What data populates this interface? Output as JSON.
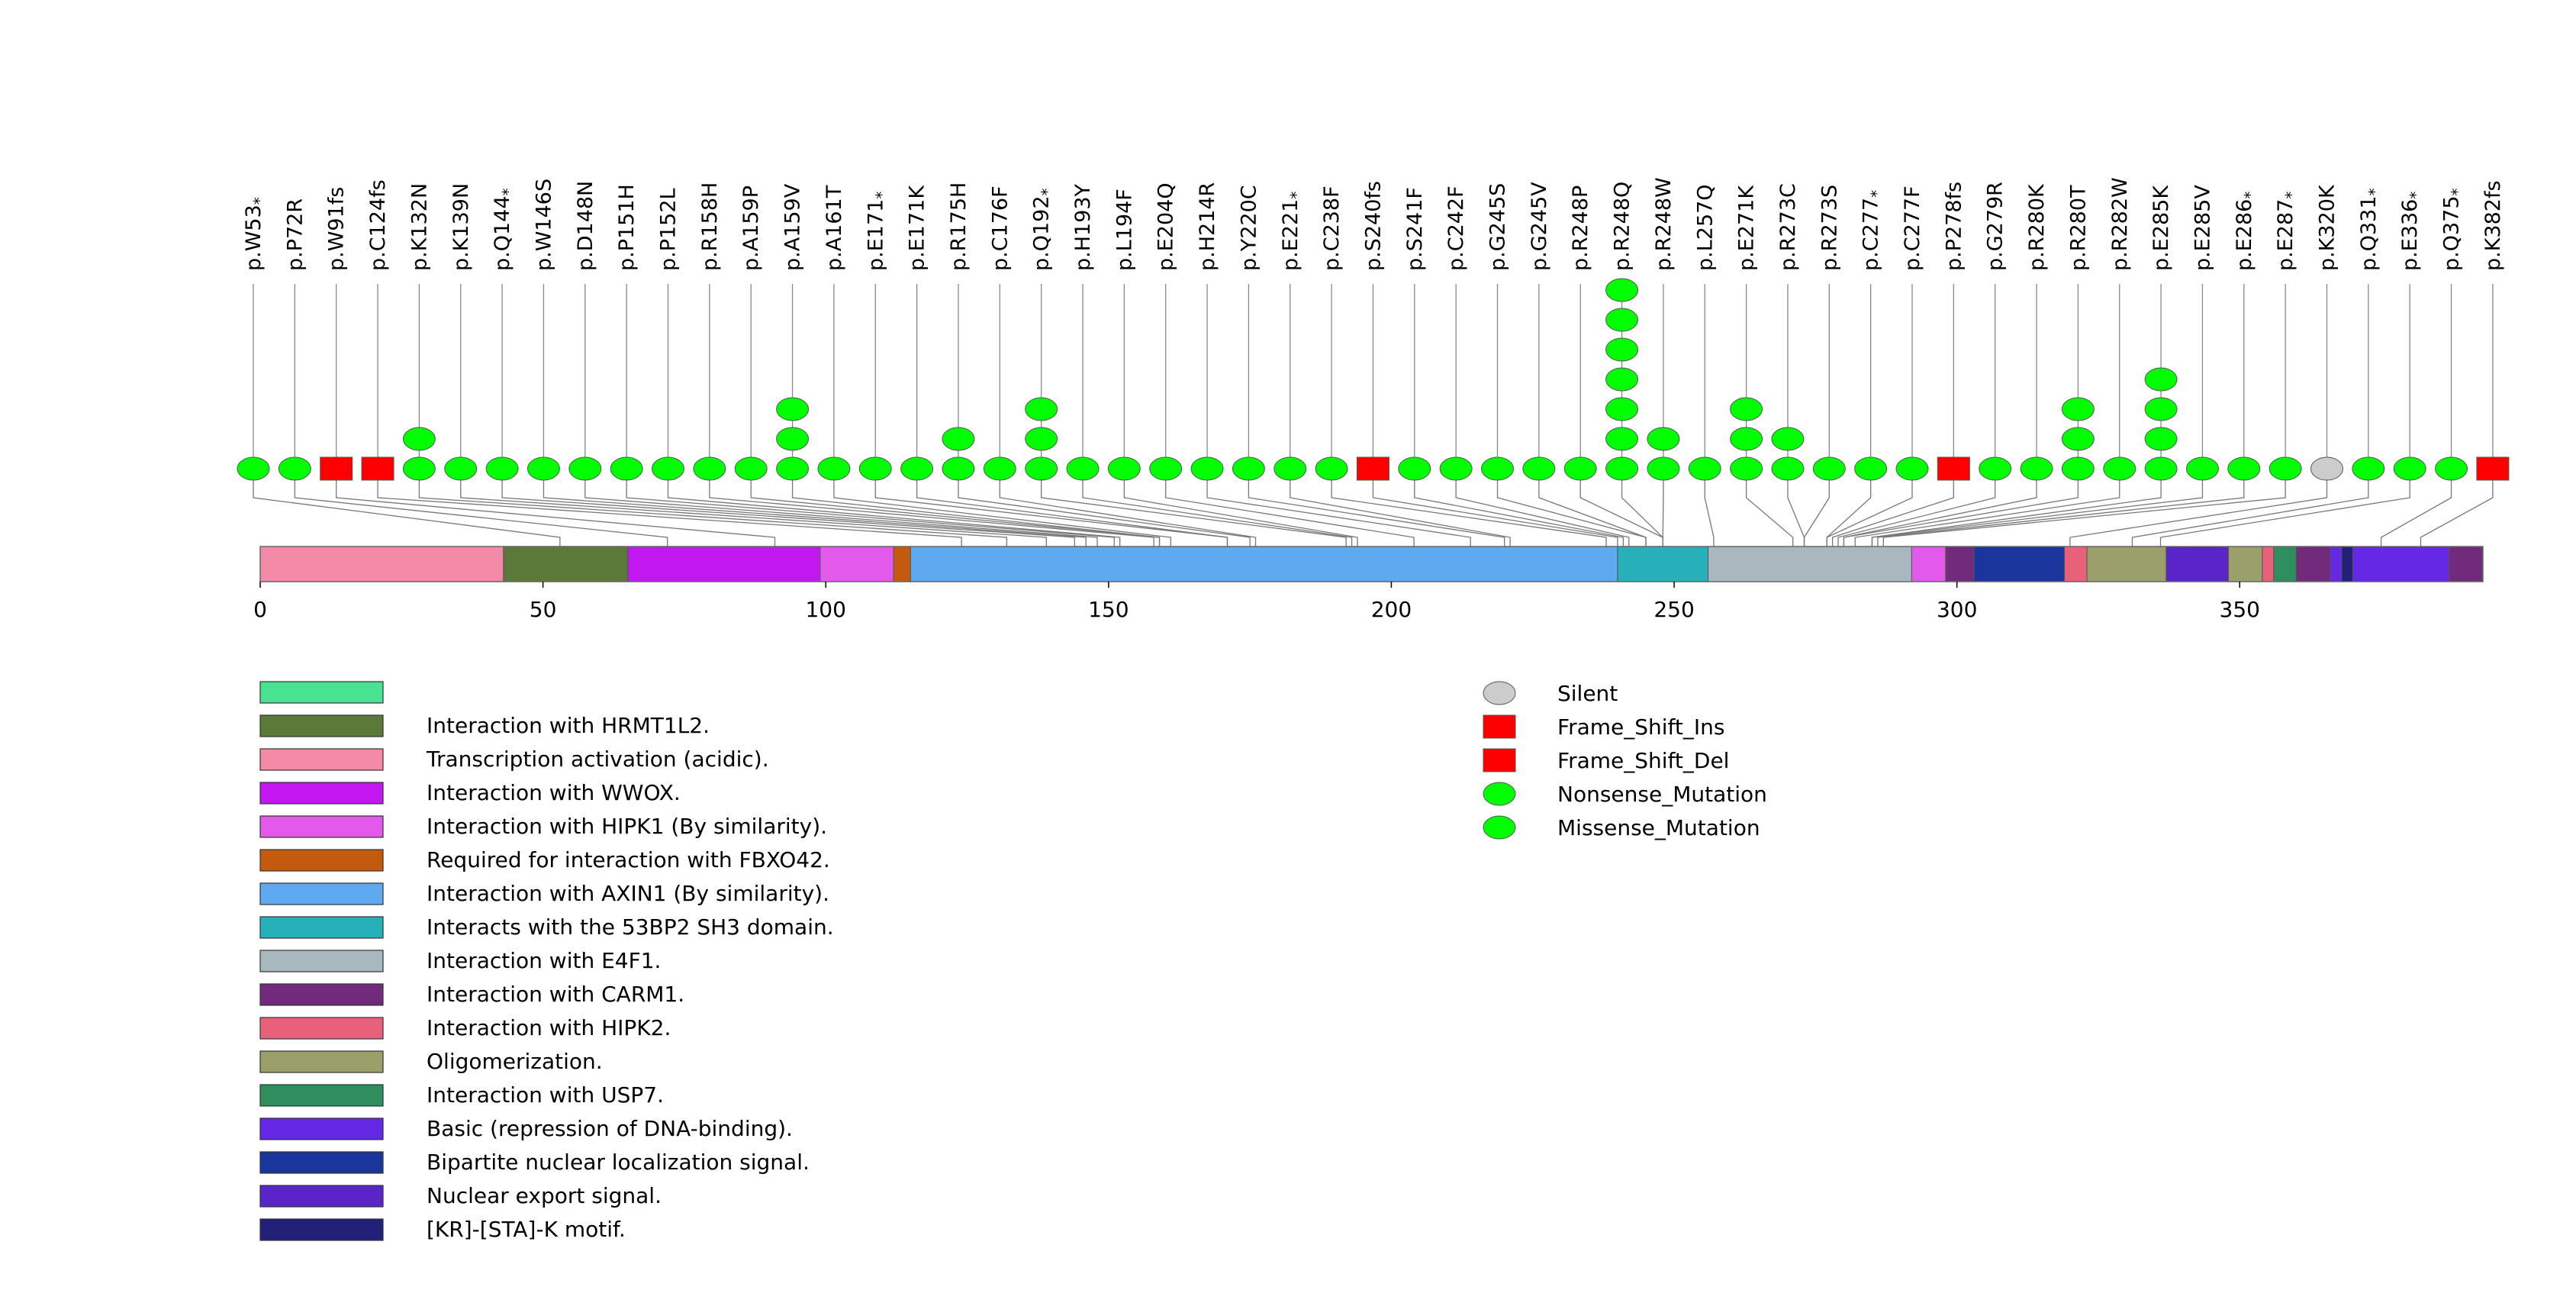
{
  "chart_data": {
    "type": "lollipop",
    "protein_length": 393,
    "axis": {
      "ticks": [
        0,
        50,
        100,
        150,
        200,
        250,
        300,
        350
      ]
    },
    "domains": [
      {
        "label": "",
        "color": "#48e290",
        "start": 0,
        "end": 0
      },
      {
        "label": "Interaction with HRMT1L2.",
        "color": "#5b7a3a",
        "start": 43,
        "end": 65
      },
      {
        "label": "Transcription activation (acidic).",
        "color": "#f48aa8",
        "start": 0,
        "end": 43
      },
      {
        "label": "Interaction with WWOX.",
        "color": "#c018ee",
        "start": 65,
        "end": 99
      },
      {
        "label": "Interaction with HIPK1 (By similarity).",
        "color": "#e35aea",
        "start": 99,
        "end": 112
      },
      {
        "label": "Required for interaction with FBXO42.",
        "color": "#c35a0e",
        "start": 112,
        "end": 115
      },
      {
        "label": "Interaction with AXIN1 (By similarity).",
        "color": "#5ea9ef",
        "start": 115,
        "end": 240
      },
      {
        "label": "Interacts with the 53BP2 SH3 domain.",
        "color": "#27b0ba",
        "start": 240,
        "end": 256
      },
      {
        "label": "Interaction with E4F1.",
        "color": "#a9b8bf",
        "start": 256,
        "end": 292
      },
      {
        "label": "Interaction with CARM1.",
        "color": "#722b7c",
        "start": 298,
        "end": 303
      },
      {
        "label": "Interaction with HIPK2.",
        "color": "#e8607a",
        "start": 319,
        "end": 323
      },
      {
        "label": "Oligomerization.",
        "color": "#9b9f6a",
        "start": 323,
        "end": 337
      },
      {
        "label": "Interaction with USP7.",
        "color": "#2f8e5e",
        "start": 356,
        "end": 360
      },
      {
        "label": "Basic (repression of DNA-binding).",
        "color": "#6528e4",
        "start": 368,
        "end": 387
      },
      {
        "label": "Bipartite nuclear localization signal.",
        "color": "#1a359b",
        "start": 303,
        "end": 319
      },
      {
        "label": "Nuclear export signal.",
        "color": "#5a25c8",
        "start": 337,
        "end": 348
      },
      {
        "label": "[KR]-[STA]-K motif.",
        "color": "#222078",
        "start": 368,
        "end": 370
      }
    ],
    "extra_segments": [
      {
        "color": "#e35aea",
        "start": 292,
        "end": 298
      },
      {
        "color": "#9b9f6a",
        "start": 348,
        "end": 354
      },
      {
        "color": "#e8607a",
        "start": 354,
        "end": 356
      },
      {
        "color": "#722b7c",
        "start": 360,
        "end": 366
      },
      {
        "color": "#6528e4",
        "start": 366,
        "end": 368
      },
      {
        "color": "#722b7c",
        "start": 387,
        "end": 393
      }
    ],
    "mutation_types": [
      {
        "label": "Silent",
        "color": "#cccccc",
        "shape": "ellipse"
      },
      {
        "label": "Frame_Shift_Ins",
        "color": "#ff0000",
        "shape": "rect"
      },
      {
        "label": "Frame_Shift_Del",
        "color": "#ff0000",
        "shape": "rect"
      },
      {
        "label": "Nonsense_Mutation",
        "color": "#00ff00",
        "shape": "ellipse"
      },
      {
        "label": "Missense_Mutation",
        "color": "#00ff00",
        "shape": "ellipse"
      }
    ],
    "mutations": [
      {
        "label": "p.W53",
        "star": true,
        "pos": 53,
        "count": 1,
        "type": "Nonsense_Mutation"
      },
      {
        "label": "p.P72R",
        "star": false,
        "pos": 72,
        "count": 1,
        "type": "Missense_Mutation"
      },
      {
        "label": "p.W91fs",
        "star": false,
        "pos": 91,
        "count": 1,
        "type": "Frame_Shift_Del"
      },
      {
        "label": "p.C124fs",
        "star": false,
        "pos": 124,
        "count": 1,
        "type": "Frame_Shift_Del"
      },
      {
        "label": "p.K132N",
        "star": false,
        "pos": 132,
        "count": 2,
        "type": "Missense_Mutation"
      },
      {
        "label": "p.K139N",
        "star": false,
        "pos": 139,
        "count": 1,
        "type": "Missense_Mutation"
      },
      {
        "label": "p.Q144",
        "star": true,
        "pos": 144,
        "count": 1,
        "type": "Nonsense_Mutation"
      },
      {
        "label": "p.W146S",
        "star": false,
        "pos": 146,
        "count": 1,
        "type": "Missense_Mutation"
      },
      {
        "label": "p.D148N",
        "star": false,
        "pos": 148,
        "count": 1,
        "type": "Missense_Mutation"
      },
      {
        "label": "p.P151H",
        "star": false,
        "pos": 151,
        "count": 1,
        "type": "Missense_Mutation"
      },
      {
        "label": "p.P152L",
        "star": false,
        "pos": 152,
        "count": 1,
        "type": "Missense_Mutation"
      },
      {
        "label": "p.R158H",
        "star": false,
        "pos": 158,
        "count": 1,
        "type": "Missense_Mutation"
      },
      {
        "label": "p.A159P",
        "star": false,
        "pos": 159,
        "count": 1,
        "type": "Missense_Mutation"
      },
      {
        "label": "p.A159V",
        "star": false,
        "pos": 159,
        "count": 3,
        "type": "Missense_Mutation"
      },
      {
        "label": "p.A161T",
        "star": false,
        "pos": 161,
        "count": 1,
        "type": "Missense_Mutation"
      },
      {
        "label": "p.E171",
        "star": true,
        "pos": 171,
        "count": 1,
        "type": "Nonsense_Mutation"
      },
      {
        "label": "p.E171K",
        "star": false,
        "pos": 171,
        "count": 1,
        "type": "Missense_Mutation"
      },
      {
        "label": "p.R175H",
        "star": false,
        "pos": 175,
        "count": 2,
        "type": "Missense_Mutation"
      },
      {
        "label": "p.C176F",
        "star": false,
        "pos": 176,
        "count": 1,
        "type": "Missense_Mutation"
      },
      {
        "label": "p.Q192",
        "star": true,
        "pos": 192,
        "count": 3,
        "type": "Nonsense_Mutation"
      },
      {
        "label": "p.H193Y",
        "star": false,
        "pos": 193,
        "count": 1,
        "type": "Missense_Mutation"
      },
      {
        "label": "p.L194F",
        "star": false,
        "pos": 194,
        "count": 1,
        "type": "Missense_Mutation"
      },
      {
        "label": "p.E204Q",
        "star": false,
        "pos": 204,
        "count": 1,
        "type": "Missense_Mutation"
      },
      {
        "label": "p.H214R",
        "star": false,
        "pos": 214,
        "count": 1,
        "type": "Missense_Mutation"
      },
      {
        "label": "p.Y220C",
        "star": false,
        "pos": 220,
        "count": 1,
        "type": "Missense_Mutation"
      },
      {
        "label": "p.E221",
        "star": true,
        "pos": 221,
        "count": 1,
        "type": "Nonsense_Mutation"
      },
      {
        "label": "p.C238F",
        "star": false,
        "pos": 238,
        "count": 1,
        "type": "Missense_Mutation"
      },
      {
        "label": "p.S240fs",
        "star": false,
        "pos": 240,
        "count": 1,
        "type": "Frame_Shift_Del"
      },
      {
        "label": "p.S241F",
        "star": false,
        "pos": 241,
        "count": 1,
        "type": "Missense_Mutation"
      },
      {
        "label": "p.C242F",
        "star": false,
        "pos": 242,
        "count": 1,
        "type": "Missense_Mutation"
      },
      {
        "label": "p.G245S",
        "star": false,
        "pos": 245,
        "count": 1,
        "type": "Missense_Mutation"
      },
      {
        "label": "p.G245V",
        "star": false,
        "pos": 245,
        "count": 1,
        "type": "Missense_Mutation"
      },
      {
        "label": "p.R248P",
        "star": false,
        "pos": 248,
        "count": 1,
        "type": "Missense_Mutation"
      },
      {
        "label": "p.R248Q",
        "star": false,
        "pos": 248,
        "count": 7,
        "type": "Missense_Mutation"
      },
      {
        "label": "p.R248W",
        "star": false,
        "pos": 248,
        "count": 2,
        "type": "Missense_Mutation"
      },
      {
        "label": "p.L257Q",
        "star": false,
        "pos": 257,
        "count": 1,
        "type": "Missense_Mutation"
      },
      {
        "label": "p.E271K",
        "star": false,
        "pos": 271,
        "count": 3,
        "type": "Missense_Mutation"
      },
      {
        "label": "p.R273C",
        "star": false,
        "pos": 273,
        "count": 2,
        "type": "Missense_Mutation"
      },
      {
        "label": "p.R273S",
        "star": false,
        "pos": 273,
        "count": 1,
        "type": "Missense_Mutation"
      },
      {
        "label": "p.C277",
        "star": true,
        "pos": 277,
        "count": 1,
        "type": "Nonsense_Mutation"
      },
      {
        "label": "p.C277F",
        "star": false,
        "pos": 277,
        "count": 1,
        "type": "Missense_Mutation"
      },
      {
        "label": "p.P278fs",
        "star": false,
        "pos": 278,
        "count": 1,
        "type": "Frame_Shift_Del"
      },
      {
        "label": "p.G279R",
        "star": false,
        "pos": 279,
        "count": 1,
        "type": "Missense_Mutation"
      },
      {
        "label": "p.R280K",
        "star": false,
        "pos": 280,
        "count": 1,
        "type": "Missense_Mutation"
      },
      {
        "label": "p.R280T",
        "star": false,
        "pos": 280,
        "count": 3,
        "type": "Missense_Mutation"
      },
      {
        "label": "p.R282W",
        "star": false,
        "pos": 282,
        "count": 1,
        "type": "Missense_Mutation"
      },
      {
        "label": "p.E285K",
        "star": false,
        "pos": 285,
        "count": 4,
        "type": "Missense_Mutation"
      },
      {
        "label": "p.E285V",
        "star": false,
        "pos": 285,
        "count": 1,
        "type": "Missense_Mutation"
      },
      {
        "label": "p.E286",
        "star": true,
        "pos": 286,
        "count": 1,
        "type": "Nonsense_Mutation"
      },
      {
        "label": "p.E287",
        "star": true,
        "pos": 287,
        "count": 1,
        "type": "Nonsense_Mutation"
      },
      {
        "label": "p.K320K",
        "star": false,
        "pos": 320,
        "count": 1,
        "type": "Silent"
      },
      {
        "label": "p.Q331",
        "star": true,
        "pos": 331,
        "count": 1,
        "type": "Nonsense_Mutation"
      },
      {
        "label": "p.E336",
        "star": true,
        "pos": 336,
        "count": 1,
        "type": "Nonsense_Mutation"
      },
      {
        "label": "p.Q375",
        "star": true,
        "pos": 375,
        "count": 1,
        "type": "Nonsense_Mutation"
      },
      {
        "label": "p.K382fs",
        "star": false,
        "pos": 382,
        "count": 1,
        "type": "Frame_Shift_Del"
      }
    ]
  }
}
